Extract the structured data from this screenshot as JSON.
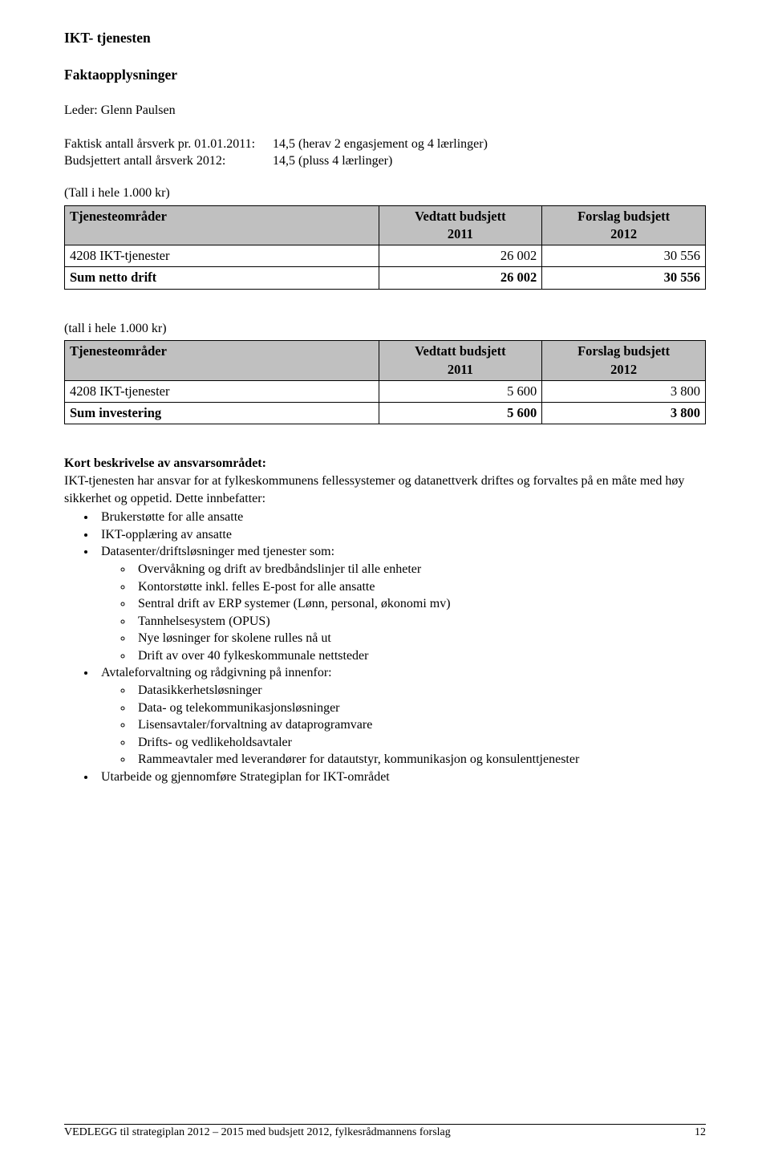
{
  "heading": "IKT- tjenesten",
  "subheading": "Faktaopplysninger",
  "leader_line": "Leder: Glenn Paulsen",
  "staffing": {
    "fte_label": "Faktisk antall årsverk pr. 01.01.2011:",
    "fte_value": "14,5 (herav 2 engasjement og 4 lærlinger)",
    "budgeted_label": "Budsjettert antall årsverk 2012:",
    "budgeted_value": "14,5 (pluss 4 lærlinger)"
  },
  "table1": {
    "note": "(Tall i hele 1.000 kr)",
    "headers": {
      "c1": "Tjenesteområder",
      "c2_l1": "Vedtatt budsjett",
      "c2_l2": "2011",
      "c3_l1": "Forslag budsjett",
      "c3_l2": "2012"
    },
    "rows": [
      {
        "label": "4208 IKT-tjenester",
        "v1": "26 002",
        "v2": "30 556"
      }
    ],
    "sum": {
      "label": "Sum netto drift",
      "v1": "26 002",
      "v2": "30 556"
    },
    "header_bg": "#c0c0c0",
    "border_color": "#000000"
  },
  "table2": {
    "note": "(tall i hele 1.000 kr)",
    "headers": {
      "c1": "Tjenesteområder",
      "c2_l1": "Vedtatt budsjett",
      "c2_l2": "2011",
      "c3_l1": "Forslag budsjett",
      "c3_l2": "2012"
    },
    "rows": [
      {
        "label": "4208 IKT-tjenester",
        "v1": "5 600",
        "v2": "3 800"
      }
    ],
    "sum": {
      "label": "Sum investering",
      "v1": "5 600",
      "v2": "3 800"
    },
    "header_bg": "#c0c0c0",
    "border_color": "#000000"
  },
  "description": {
    "title": "Kort beskrivelse av ansvarsområdet:",
    "intro": "IKT-tjenesten har ansvar for at fylkeskommunens fellessystemer og datanettverk driftes og forvaltes på en måte med høy sikkerhet og oppetid. Dette innbefatter:",
    "items": [
      {
        "text": "Brukerstøtte for alle ansatte"
      },
      {
        "text": "IKT-opplæring av ansatte"
      },
      {
        "text": "Datasenter/driftsløsninger med tjenester som:",
        "children": [
          "Overvåkning og drift av bredbåndslinjer til alle enheter",
          "Kontorstøtte inkl. felles E-post for alle ansatte",
          "Sentral drift av ERP systemer (Lønn, personal, økonomi mv)",
          "Tannhelsesystem (OPUS)",
          "Nye løsninger for skolene rulles nå ut",
          "Drift av over 40 fylkeskommunale nettsteder"
        ]
      },
      {
        "text": "Avtaleforvaltning og rådgivning på innenfor:",
        "children": [
          "Datasikkerhetsløsninger",
          "Data- og telekommunikasjonsløsninger",
          "Lisensavtaler/forvaltning av dataprogramvare",
          "Drifts- og vedlikeholdsavtaler",
          "Rammeavtaler med leverandører for datautstyr, kommunikasjon og konsulenttjenester"
        ]
      },
      {
        "text": "Utarbeide og gjennomføre Strategiplan for IKT-området"
      }
    ]
  },
  "footer": {
    "text": "VEDLEGG til strategiplan 2012 – 2015 med budsjett 2012, fylkesrådmannens forslag",
    "page": "12"
  }
}
